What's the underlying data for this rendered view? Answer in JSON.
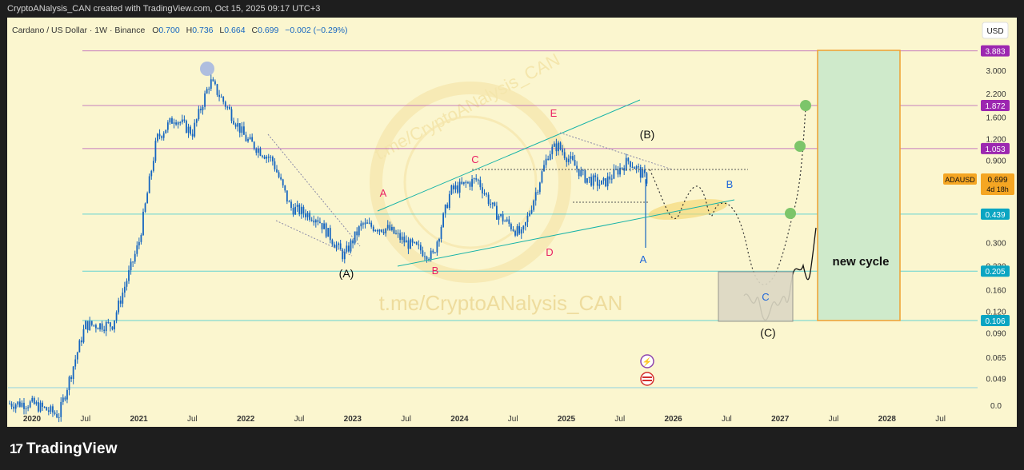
{
  "header": {
    "attribution": "CryptoANalysis_CAN created with TradingView.com, Oct 15, 2025 09:17 UTC+3"
  },
  "legend": {
    "symbol": "Cardano / US Dollar · 1W · Binance",
    "open_label": "O",
    "open": "0.700",
    "high_label": "H",
    "high": "0.736",
    "low_label": "L",
    "low": "0.664",
    "close_label": "C",
    "close": "0.699",
    "change": "−0.002 (−0.29%)"
  },
  "currency_button": "USD",
  "watermark": "t.me/CryptoANalysis_CAN",
  "footer": {
    "brand": "TradingView"
  },
  "colors": {
    "background": "#fbf6cf",
    "candle": "#1565c0",
    "wave_red": "#e91e63",
    "wave_blue": "#1e66d9",
    "magenta_level": "#9c27b0",
    "teal_level": "#00bcd4",
    "target_box_fill": "#cfeacb",
    "target_box_border": "#f0a030",
    "green_dot": "#7cc56a",
    "price_tag": "#f5a623"
  },
  "chart_data": {
    "type": "candlestick",
    "title": "Cardano / US Dollar · 1W · Binance",
    "y_scale": "log",
    "y_ticks": [
      "3.000",
      "2.200",
      "1.600",
      "1.200",
      "0.900",
      "0.300",
      "0.220",
      "0.160",
      "0.120",
      "0.090",
      "0.065",
      "0.049",
      "0.0"
    ],
    "x_ticks": [
      "2020",
      "Jul",
      "2021",
      "Jul",
      "2022",
      "Jul",
      "2023",
      "Jul",
      "2024",
      "Jul",
      "2025",
      "Jul",
      "2026",
      "Jul",
      "2027",
      "Jul",
      "2028",
      "Jul"
    ],
    "levels": [
      {
        "label": "3.883",
        "value": 3.883,
        "style": "magenta"
      },
      {
        "label": "1.872",
        "value": 1.872,
        "style": "magenta"
      },
      {
        "label": "1.053",
        "value": 1.053,
        "style": "magenta"
      },
      {
        "label": "0.439",
        "value": 0.439,
        "style": "teal"
      },
      {
        "label": "0.205",
        "value": 0.205,
        "style": "teal"
      },
      {
        "label": "0.106",
        "value": 0.106,
        "style": "teal"
      }
    ],
    "current_price": {
      "symbol": "ADAUSD",
      "value": "0.699",
      "countdown": "4d 18h"
    },
    "approx_closes": [
      {
        "t": "2020-01",
        "v": 0.035
      },
      {
        "t": "2020-04",
        "v": 0.03
      },
      {
        "t": "2020-07",
        "v": 0.1
      },
      {
        "t": "2020-10",
        "v": 0.1
      },
      {
        "t": "2021-01",
        "v": 0.3
      },
      {
        "t": "2021-03",
        "v": 1.2
      },
      {
        "t": "2021-05",
        "v": 1.6
      },
      {
        "t": "2021-07",
        "v": 1.3
      },
      {
        "t": "2021-09",
        "v": 2.6
      },
      {
        "t": "2021-11",
        "v": 1.8
      },
      {
        "t": "2022-01",
        "v": 1.2
      },
      {
        "t": "2022-04",
        "v": 0.9
      },
      {
        "t": "2022-06",
        "v": 0.48
      },
      {
        "t": "2022-09",
        "v": 0.42
      },
      {
        "t": "2022-12",
        "v": 0.25
      },
      {
        "t": "2023-02",
        "v": 0.38
      },
      {
        "t": "2023-05",
        "v": 0.36
      },
      {
        "t": "2023-07",
        "v": 0.3
      },
      {
        "t": "2023-10",
        "v": 0.25
      },
      {
        "t": "2023-12",
        "v": 0.6
      },
      {
        "t": "2024-03",
        "v": 0.7
      },
      {
        "t": "2024-05",
        "v": 0.45
      },
      {
        "t": "2024-08",
        "v": 0.33
      },
      {
        "t": "2024-11",
        "v": 1.0
      },
      {
        "t": "2024-12",
        "v": 1.1
      },
      {
        "t": "2025-03",
        "v": 0.72
      },
      {
        "t": "2025-05",
        "v": 0.65
      },
      {
        "t": "2025-08",
        "v": 0.9
      },
      {
        "t": "2025-10",
        "v": 0.7
      }
    ],
    "annotations": {
      "primary_waves": [
        "(A)",
        "(B)",
        "(C)"
      ],
      "triangle_waves": [
        "A",
        "B",
        "C",
        "D",
        "E"
      ],
      "projection_waves": [
        "A",
        "B",
        "C"
      ],
      "target_box_label": "new cycle"
    }
  }
}
